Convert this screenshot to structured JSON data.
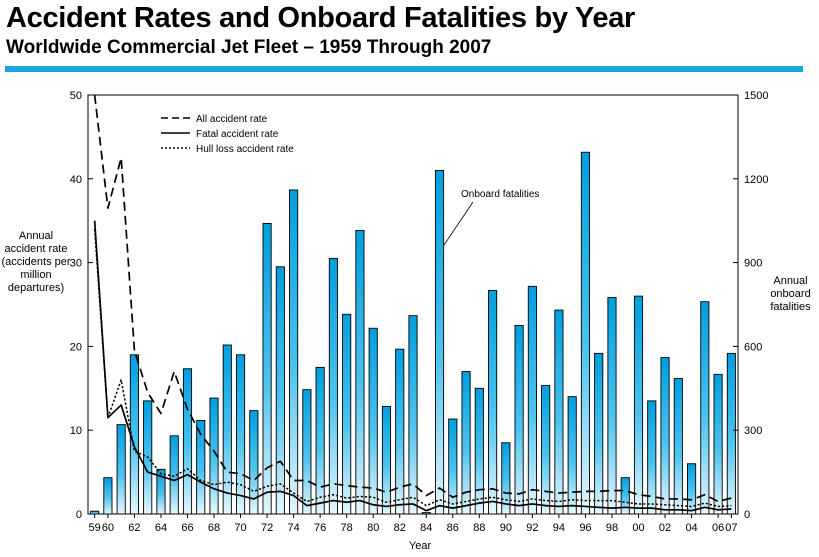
{
  "header": {
    "title": "Accident Rates and Onboard Fatalities by Year",
    "subtitle": "Worldwide Commercial Jet Fleet – 1959 Through 2007",
    "accent_color": "#1aa4dc"
  },
  "chart_data": {
    "type": "bar+line",
    "title": "Accident Rates and Onboard Fatalities by Year",
    "subtitle": "Worldwide Commercial Jet Fleet – 1959 Through 2007",
    "xlabel": "Year",
    "ylabel": "Annual accident rate (accidents per million departures)",
    "y2label": "Annual onboard fatalities",
    "ylim": [
      0,
      50
    ],
    "y2lim": [
      0,
      1500
    ],
    "yticks": [
      "0",
      "10",
      "20",
      "30",
      "40",
      "50"
    ],
    "y2ticks": [
      "0",
      "300",
      "600",
      "900",
      "1200",
      "1500"
    ],
    "years": [
      1959,
      1960,
      1961,
      1962,
      1963,
      1964,
      1965,
      1966,
      1967,
      1968,
      1969,
      1970,
      1971,
      1972,
      1973,
      1974,
      1975,
      1976,
      1977,
      1978,
      1979,
      1980,
      1981,
      1982,
      1983,
      1984,
      1985,
      1986,
      1987,
      1988,
      1989,
      1990,
      1991,
      1992,
      1993,
      1994,
      1995,
      1996,
      1997,
      1998,
      1999,
      2000,
      2001,
      2002,
      2003,
      2004,
      2005,
      2006,
      2007
    ],
    "xtick_labels": [
      "59",
      "60",
      "62",
      "64",
      "66",
      "68",
      "70",
      "72",
      "74",
      "76",
      "78",
      "80",
      "82",
      "84",
      "86",
      "88",
      "90",
      "92",
      "94",
      "96",
      "98",
      "00",
      "02",
      "04",
      "06",
      "07"
    ],
    "xtick_years": [
      1959,
      1960,
      1962,
      1964,
      1966,
      1968,
      1970,
      1972,
      1974,
      1976,
      1978,
      1980,
      1982,
      1984,
      1986,
      1988,
      1990,
      1992,
      1994,
      1996,
      1998,
      2000,
      2002,
      2004,
      2006,
      2007
    ],
    "bar_series": {
      "name": "Onboard fatalities",
      "axis": "right",
      "values": [
        10,
        130,
        320,
        570,
        405,
        160,
        280,
        520,
        335,
        415,
        605,
        570,
        370,
        1040,
        885,
        1160,
        445,
        525,
        915,
        715,
        1015,
        665,
        385,
        590,
        710,
        5,
        1230,
        340,
        510,
        450,
        800,
        255,
        675,
        815,
        460,
        730,
        420,
        1295,
        575,
        775,
        130,
        780,
        405,
        560,
        485,
        180,
        760,
        500,
        575
      ]
    },
    "line_series": [
      {
        "name": "All accident rate",
        "style": "dashed",
        "axis": "left",
        "values": [
          50,
          36.5,
          42.5,
          19.5,
          14.5,
          12,
          17,
          12.5,
          9.5,
          7.5,
          5,
          4.8,
          4,
          5.5,
          6.3,
          4,
          4,
          3.2,
          3.6,
          3.4,
          3.2,
          3.1,
          2.6,
          3.2,
          3.6,
          2.2,
          3.1,
          2,
          2.6,
          2.9,
          3,
          2.5,
          2.4,
          2.9,
          2.7,
          2.5,
          2.6,
          2.7,
          2.7,
          2.8,
          2.8,
          2.3,
          2.1,
          1.8,
          1.8,
          1.7,
          2.3,
          1.5,
          1.9
        ]
      },
      {
        "name": "Fatal accident rate",
        "style": "solid",
        "axis": "left",
        "values": [
          35,
          11.5,
          13,
          8,
          5,
          4.5,
          4,
          4.7,
          3.8,
          3,
          2.5,
          2.2,
          1.8,
          2.6,
          2.7,
          2.2,
          1,
          1.3,
          1.6,
          1.4,
          1.6,
          1.1,
          0.9,
          1.1,
          1.2,
          0.4,
          1,
          0.7,
          1,
          1.3,
          1.5,
          1.2,
          1,
          1.2,
          1,
          0.9,
          1,
          0.9,
          0.8,
          0.7,
          0.8,
          0.7,
          0.7,
          0.5,
          0.5,
          0.4,
          0.8,
          0.5,
          0.6
        ]
      },
      {
        "name": "Hull loss accident rate",
        "style": "dotted",
        "axis": "left",
        "values": [
          34,
          11.5,
          16,
          7.5,
          6.8,
          4.8,
          4.5,
          5.4,
          4,
          3.5,
          3.8,
          3.5,
          2.7,
          3.3,
          3.6,
          2.5,
          1.5,
          2,
          2.3,
          1.9,
          2.1,
          2,
          1.4,
          1.7,
          2,
          1,
          1.7,
          1.2,
          1.5,
          1.8,
          2,
          1.7,
          1.5,
          1.8,
          1.6,
          1.5,
          1.7,
          1.6,
          1.6,
          1.6,
          1.4,
          1.2,
          1.2,
          1.1,
          1,
          0.9,
          1.3,
          0.9,
          1
        ]
      }
    ],
    "legend": [
      "All accident rate",
      "Fatal accident rate",
      "Hull loss accident rate"
    ],
    "legend_position": "top-left",
    "annotation": "Onboard fatalities"
  }
}
